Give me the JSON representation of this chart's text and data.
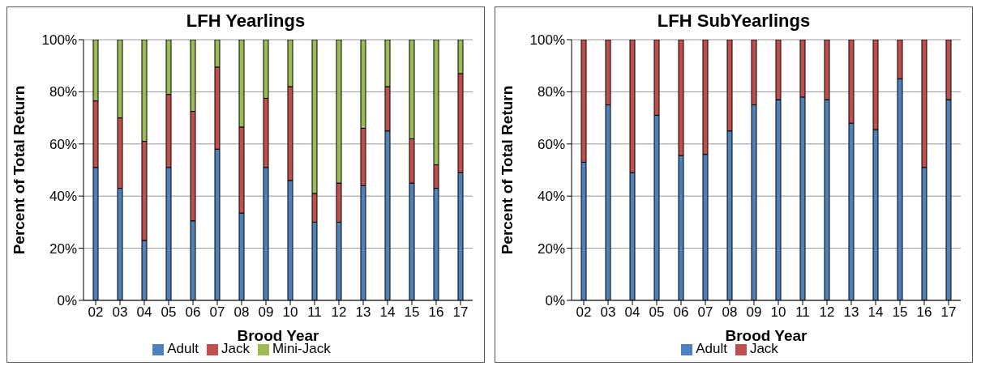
{
  "chart_data": [
    {
      "type": "bar",
      "title": "LFH Yearlings",
      "xlabel": "Brood Year",
      "ylabel": "Percent of Total Return",
      "categories": [
        "02",
        "03",
        "04",
        "05",
        "06",
        "07",
        "08",
        "09",
        "10",
        "11",
        "12",
        "13",
        "14",
        "15",
        "16",
        "17"
      ],
      "stacked": true,
      "series": [
        {
          "name": "Adult",
          "color": "#4f81bd",
          "values": [
            51,
            43,
            23,
            51,
            30.5,
            58,
            33.5,
            51,
            46,
            30,
            30,
            44,
            65,
            45,
            43,
            49
          ]
        },
        {
          "name": "Jack",
          "color": "#c0504d",
          "values": [
            25.5,
            27,
            38,
            28,
            42,
            31.5,
            33,
            26.5,
            36,
            11,
            15,
            22,
            17,
            17,
            9,
            38
          ]
        },
        {
          "name": "Mini-Jack",
          "color": "#9bbb59",
          "values": [
            23.5,
            30,
            39,
            21,
            27.5,
            10.5,
            33.5,
            22.5,
            18,
            59,
            55,
            34,
            18,
            38,
            48,
            13
          ]
        }
      ],
      "ylim": [
        0,
        100
      ],
      "yticks": [
        {
          "value": 0,
          "label": "0%"
        },
        {
          "value": 20,
          "label": "20%"
        },
        {
          "value": 40,
          "label": "40%"
        },
        {
          "value": 60,
          "label": "60%"
        },
        {
          "value": 80,
          "label": "80%"
        },
        {
          "value": 100,
          "label": "100%"
        }
      ],
      "grid": "y",
      "legend": "bottom"
    },
    {
      "type": "bar",
      "title": "LFH SubYearlings",
      "xlabel": "Brood Year",
      "ylabel": "Percent of Total Return",
      "categories": [
        "02",
        "03",
        "04",
        "05",
        "06",
        "07",
        "08",
        "09",
        "10",
        "11",
        "12",
        "13",
        "14",
        "15",
        "16",
        "17"
      ],
      "stacked": true,
      "series": [
        {
          "name": "Adult",
          "color": "#4f81bd",
          "values": [
            53,
            75,
            49,
            71,
            55.5,
            56,
            65,
            75,
            77,
            78,
            77,
            68,
            65.5,
            85,
            51,
            77
          ]
        },
        {
          "name": "Jack",
          "color": "#c0504d",
          "values": [
            47,
            25,
            51,
            29,
            44.5,
            44,
            35,
            25,
            23,
            22,
            23,
            32,
            34.5,
            15,
            49,
            23
          ]
        }
      ],
      "ylim": [
        0,
        100
      ],
      "yticks": [
        {
          "value": 0,
          "label": "0%"
        },
        {
          "value": 20,
          "label": "20%"
        },
        {
          "value": 40,
          "label": "40%"
        },
        {
          "value": 60,
          "label": "60%"
        },
        {
          "value": 80,
          "label": "80%"
        },
        {
          "value": 100,
          "label": "100%"
        }
      ],
      "grid": "y",
      "legend": "bottom"
    }
  ]
}
